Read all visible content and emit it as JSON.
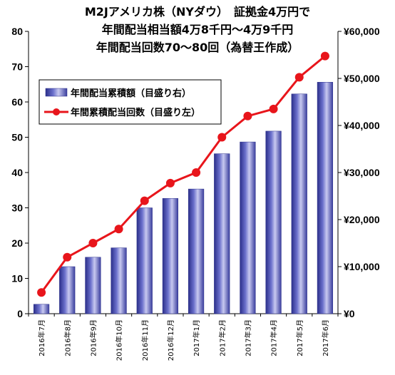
{
  "chart_data": {
    "type": "bar+line",
    "title_lines": [
      "M2Jアメリカ株（NYダウ）　証拠金4万円で",
      "年間配当相当額4万8千円～4万9千円",
      "年間配当回数70～80回（為替王作成）"
    ],
    "categories": [
      "2016年7月",
      "2016年8月",
      "2016年9月",
      "2016年10月",
      "2016年11月",
      "2016年12月",
      "2017年1月",
      "2017年2月",
      "2017年3月",
      "2017年4月",
      "2017年5月",
      "2017年6月"
    ],
    "series": [
      {
        "name": "年間配当累積額（目盛り右）",
        "kind": "bar",
        "axis": "right",
        "values": [
          2000,
          10000,
          12000,
          14000,
          22500,
          24500,
          26500,
          34000,
          36500,
          38800,
          46700,
          49200
        ]
      },
      {
        "name": "年間累積配当回数（目盛り左）",
        "kind": "line",
        "axis": "left",
        "values": [
          6,
          16,
          20,
          24,
          32,
          37,
          40,
          50,
          56,
          58,
          67,
          73
        ]
      }
    ],
    "left_axis": {
      "ylim": [
        0,
        80
      ],
      "ticks": [
        "0",
        "10",
        "20",
        "30",
        "40",
        "50",
        "60",
        "70",
        "80"
      ]
    },
    "right_axis": {
      "ylim": [
        0,
        60000
      ],
      "ticks": [
        "¥0",
        "¥10,000",
        "¥20,000",
        "¥30,000",
        "¥40,000",
        "¥50,000",
        "¥60,000"
      ]
    },
    "legend_position": "top-left",
    "grid": false,
    "colors": {
      "bar": "#4a4fb0",
      "bar_highlight": "#c8c9f0",
      "line": "#e8151b"
    }
  }
}
